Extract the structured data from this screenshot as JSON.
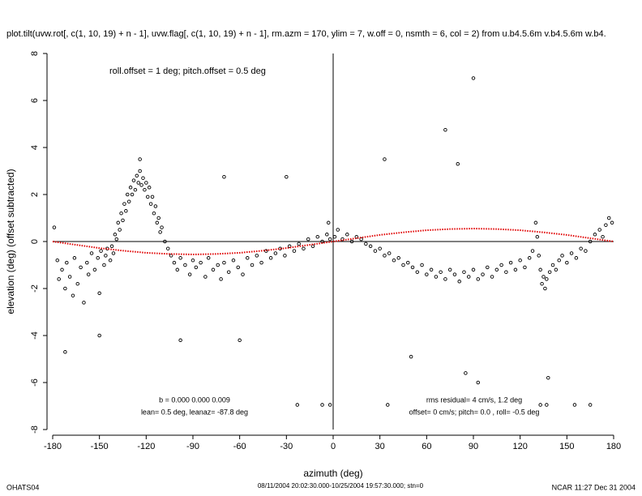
{
  "chart_data": {
    "type": "scatter",
    "title": "plot.tilt(uvw.rot[, c(1, 10, 19) + n - 1], uvw.flag[, c(1, 10, 19) + n - 1], rm.azm = 170, ylim = 7, w.off = 0, nsmth = 6, col = 2) from u.b4.5.6m v.b4.5.6m w.b4.",
    "annotation_top": "roll.offset = 1 deg; pitch.offset = 0.5 deg",
    "annotation_b": "b =  0.000  0.000  0.009",
    "annotation_lean": "lean= 0.5 deg, leanaz= -87.8 deg",
    "annotation_rms": "rms residual= 4 cm/s, 1.2 deg",
    "annotation_offset": "offset= 0 cm/s; pitch=  0.0 , roll= -0.5 deg",
    "xlabel": "azimuth (deg)",
    "ylabel": "elevation (deg)  (offset subtracted)",
    "footer_left": "OHATS04",
    "footer_center": "08/11/2004 20:02:30.000-10/25/2004 19:57:30.000; stn=0",
    "footer_right": "NCAR 11:27 Dec 31 2004",
    "xlim": [
      -180,
      180
    ],
    "ylim": [
      -8,
      8
    ],
    "xticks": [
      -180,
      -150,
      -120,
      -90,
      -60,
      -30,
      0,
      30,
      60,
      90,
      120,
      150,
      180
    ],
    "yticks": [
      -8,
      -6,
      -4,
      -2,
      0,
      2,
      4,
      6,
      8
    ],
    "point_color": "#000000",
    "x": [
      -179,
      -177,
      -176,
      -174,
      -172,
      -171,
      -169,
      -167,
      -166,
      -164,
      -162,
      -160,
      -158,
      -157,
      -155,
      -153,
      -151,
      -150,
      -149,
      -147,
      -146,
      -145,
      -143,
      -142,
      -141,
      -140,
      -139,
      -138,
      -137,
      -136,
      -135,
      -134,
      -133,
      -132,
      -131,
      -130,
      -129,
      -128,
      -127,
      -126,
      -125,
      -124,
      -123,
      -122,
      -121,
      -120,
      -119,
      -118,
      -117,
      -116,
      -115,
      -114,
      -113,
      -112,
      -111,
      -110,
      -108,
      -106,
      -104,
      -102,
      -100,
      -98,
      -95,
      -92,
      -90,
      -88,
      -85,
      -82,
      -80,
      -77,
      -74,
      -72,
      -70,
      -67,
      -64,
      -61,
      -58,
      -55,
      -52,
      -49,
      -46,
      -43,
      -40,
      -37,
      -34,
      -31,
      -28,
      -25,
      -22,
      -19,
      -16,
      -13,
      -10,
      -7,
      -4,
      -2,
      1,
      3,
      6,
      9,
      12,
      15,
      18,
      21,
      24,
      27,
      30,
      33,
      36,
      39,
      42,
      45,
      48,
      51,
      54,
      57,
      60,
      63,
      66,
      69,
      72,
      75,
      78,
      81,
      84,
      87,
      90,
      93,
      96,
      99,
      102,
      105,
      108,
      111,
      114,
      117,
      120,
      123,
      126,
      128,
      130,
      131,
      132,
      133,
      134,
      135,
      136,
      137,
      139,
      141,
      143,
      145,
      147,
      150,
      153,
      156,
      159,
      162,
      165,
      168,
      171,
      173,
      175,
      177,
      179,
      90,
      72,
      33,
      80,
      -70,
      -30,
      -172,
      -150,
      -60,
      -98,
      93,
      -7,
      -2,
      -23,
      35,
      155,
      165,
      133,
      137,
      85,
      138,
      50,
      -124,
      -3
    ],
    "y": [
      0.6,
      -0.8,
      -1.6,
      -1.2,
      -2.0,
      -0.9,
      -1.5,
      -2.3,
      -0.7,
      -1.8,
      -1.1,
      -2.6,
      -0.9,
      -1.4,
      -0.5,
      -1.2,
      -0.7,
      -2.2,
      -0.4,
      -1.0,
      -0.6,
      -0.3,
      -0.8,
      -0.2,
      -0.5,
      0.3,
      0.1,
      0.8,
      0.5,
      1.2,
      0.9,
      1.6,
      1.3,
      2.0,
      1.7,
      2.3,
      2.0,
      2.6,
      2.2,
      2.8,
      2.5,
      3.0,
      2.4,
      2.7,
      2.2,
      2.5,
      1.9,
      2.3,
      1.6,
      1.9,
      1.2,
      1.5,
      0.8,
      1.0,
      0.4,
      0.6,
      0.0,
      -0.3,
      -0.6,
      -0.9,
      -1.2,
      -0.7,
      -1.0,
      -1.4,
      -0.8,
      -1.1,
      -0.9,
      -1.5,
      -0.7,
      -1.2,
      -1.0,
      -1.6,
      -0.9,
      -1.3,
      -0.8,
      -1.1,
      -1.4,
      -0.7,
      -1.0,
      -0.6,
      -0.9,
      -0.4,
      -0.7,
      -0.5,
      -0.3,
      -0.6,
      -0.2,
      -0.4,
      -0.1,
      -0.3,
      0.1,
      -0.2,
      0.2,
      0.0,
      0.3,
      0.1,
      0.2,
      0.5,
      0.1,
      0.3,
      0.0,
      0.2,
      0.1,
      -0.1,
      -0.2,
      -0.4,
      -0.3,
      -0.6,
      -0.5,
      -0.8,
      -0.7,
      -1.0,
      -0.9,
      -1.1,
      -1.3,
      -1.0,
      -1.4,
      -1.2,
      -1.5,
      -1.3,
      -1.6,
      -1.2,
      -1.4,
      -1.7,
      -1.3,
      -1.5,
      -1.2,
      -1.6,
      -1.4,
      -1.1,
      -1.5,
      -1.2,
      -1.0,
      -1.3,
      -0.9,
      -1.2,
      -0.8,
      -1.1,
      -0.7,
      -0.4,
      0.8,
      0.2,
      -0.6,
      -1.2,
      -1.8,
      -1.5,
      -2.0,
      -1.6,
      -1.3,
      -1.0,
      -1.2,
      -0.8,
      -0.6,
      -0.9,
      -0.5,
      -0.7,
      -0.3,
      -0.4,
      0.0,
      0.3,
      0.5,
      0.2,
      0.7,
      1.0,
      0.8,
      6.95,
      4.75,
      3.5,
      3.3,
      2.75,
      2.75,
      -4.7,
      -4.0,
      -4.2,
      -4.2,
      -6.0,
      -6.95,
      -6.95,
      -6.95,
      -6.95,
      -6.95,
      -6.95,
      -6.95,
      -6.95,
      -5.6,
      -5.8,
      -4.9,
      3.5,
      0.8
    ],
    "fit": {
      "color": "#e00000",
      "x": [
        -180,
        -165,
        -150,
        -135,
        -120,
        -105,
        -90,
        -75,
        -60,
        -45,
        -30,
        -15,
        0,
        15,
        30,
        45,
        60,
        75,
        90,
        105,
        120,
        135,
        150,
        165,
        180
      ],
      "y": [
        0,
        -0.14,
        -0.28,
        -0.39,
        -0.48,
        -0.53,
        -0.55,
        -0.53,
        -0.48,
        -0.39,
        -0.28,
        -0.14,
        0,
        0.14,
        0.28,
        0.39,
        0.48,
        0.53,
        0.55,
        0.53,
        0.48,
        0.39,
        0.28,
        0.14,
        0
      ]
    }
  }
}
